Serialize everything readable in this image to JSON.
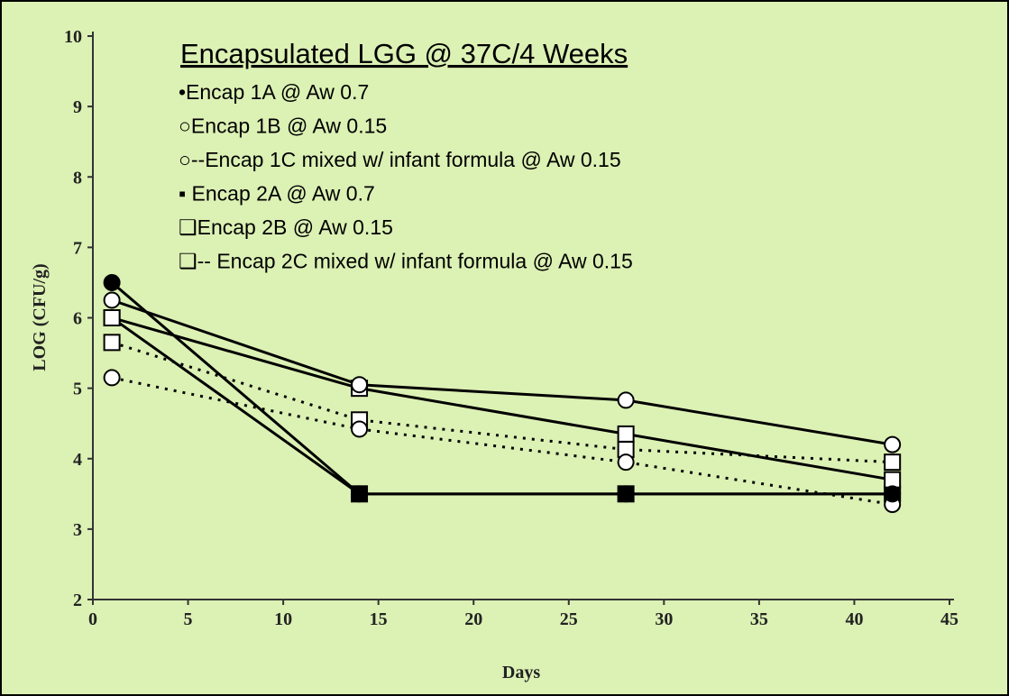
{
  "chart_data": {
    "type": "line",
    "title": "Encapsulated LGG @ 37C/4 Weeks",
    "x_label": "Days",
    "y_label": "LOG (CFU/g)",
    "x": [
      1,
      14,
      28,
      42
    ],
    "xlim": [
      0,
      45
    ],
    "xticks": [
      0,
      5,
      10,
      15,
      20,
      25,
      30,
      35,
      40,
      45
    ],
    "ylim": [
      2,
      10
    ],
    "yticks": [
      2,
      3,
      4,
      5,
      6,
      7,
      8,
      9,
      10
    ],
    "series": [
      {
        "name": "•Encap 1A @ Aw 0.7",
        "color": "#000000",
        "marker": "circle",
        "filled": true,
        "dashed": false,
        "values": [
          6.5,
          3.5,
          3.5,
          3.5
        ]
      },
      {
        "name": "○Encap 1B @ Aw 0.15",
        "color": "#000000",
        "marker": "circle",
        "filled": false,
        "dashed": false,
        "values": [
          6.25,
          5.05,
          4.83,
          4.2
        ]
      },
      {
        "name": "○--Encap 1C mixed w/ infant formula @ Aw 0.15",
        "color": "#000000",
        "marker": "circle",
        "filled": false,
        "dashed": true,
        "values": [
          5.15,
          4.42,
          3.95,
          3.35
        ]
      },
      {
        "name": "▪ Encap 2A @ Aw 0.7",
        "color": "#000000",
        "marker": "square",
        "filled": true,
        "dashed": false,
        "values": [
          6.0,
          3.5,
          3.5,
          3.5
        ]
      },
      {
        "name": "❑Encap 2B @ Aw 0.15",
        "color": "#000000",
        "marker": "square",
        "filled": false,
        "dashed": false,
        "values": [
          6.0,
          5.0,
          4.35,
          3.7
        ]
      },
      {
        "name": "❑-- Encap 2C mixed w/ infant formula @ Aw 0.15",
        "color": "#000000",
        "marker": "square",
        "filled": false,
        "dashed": true,
        "values": [
          5.65,
          4.55,
          4.13,
          3.95
        ]
      }
    ]
  }
}
